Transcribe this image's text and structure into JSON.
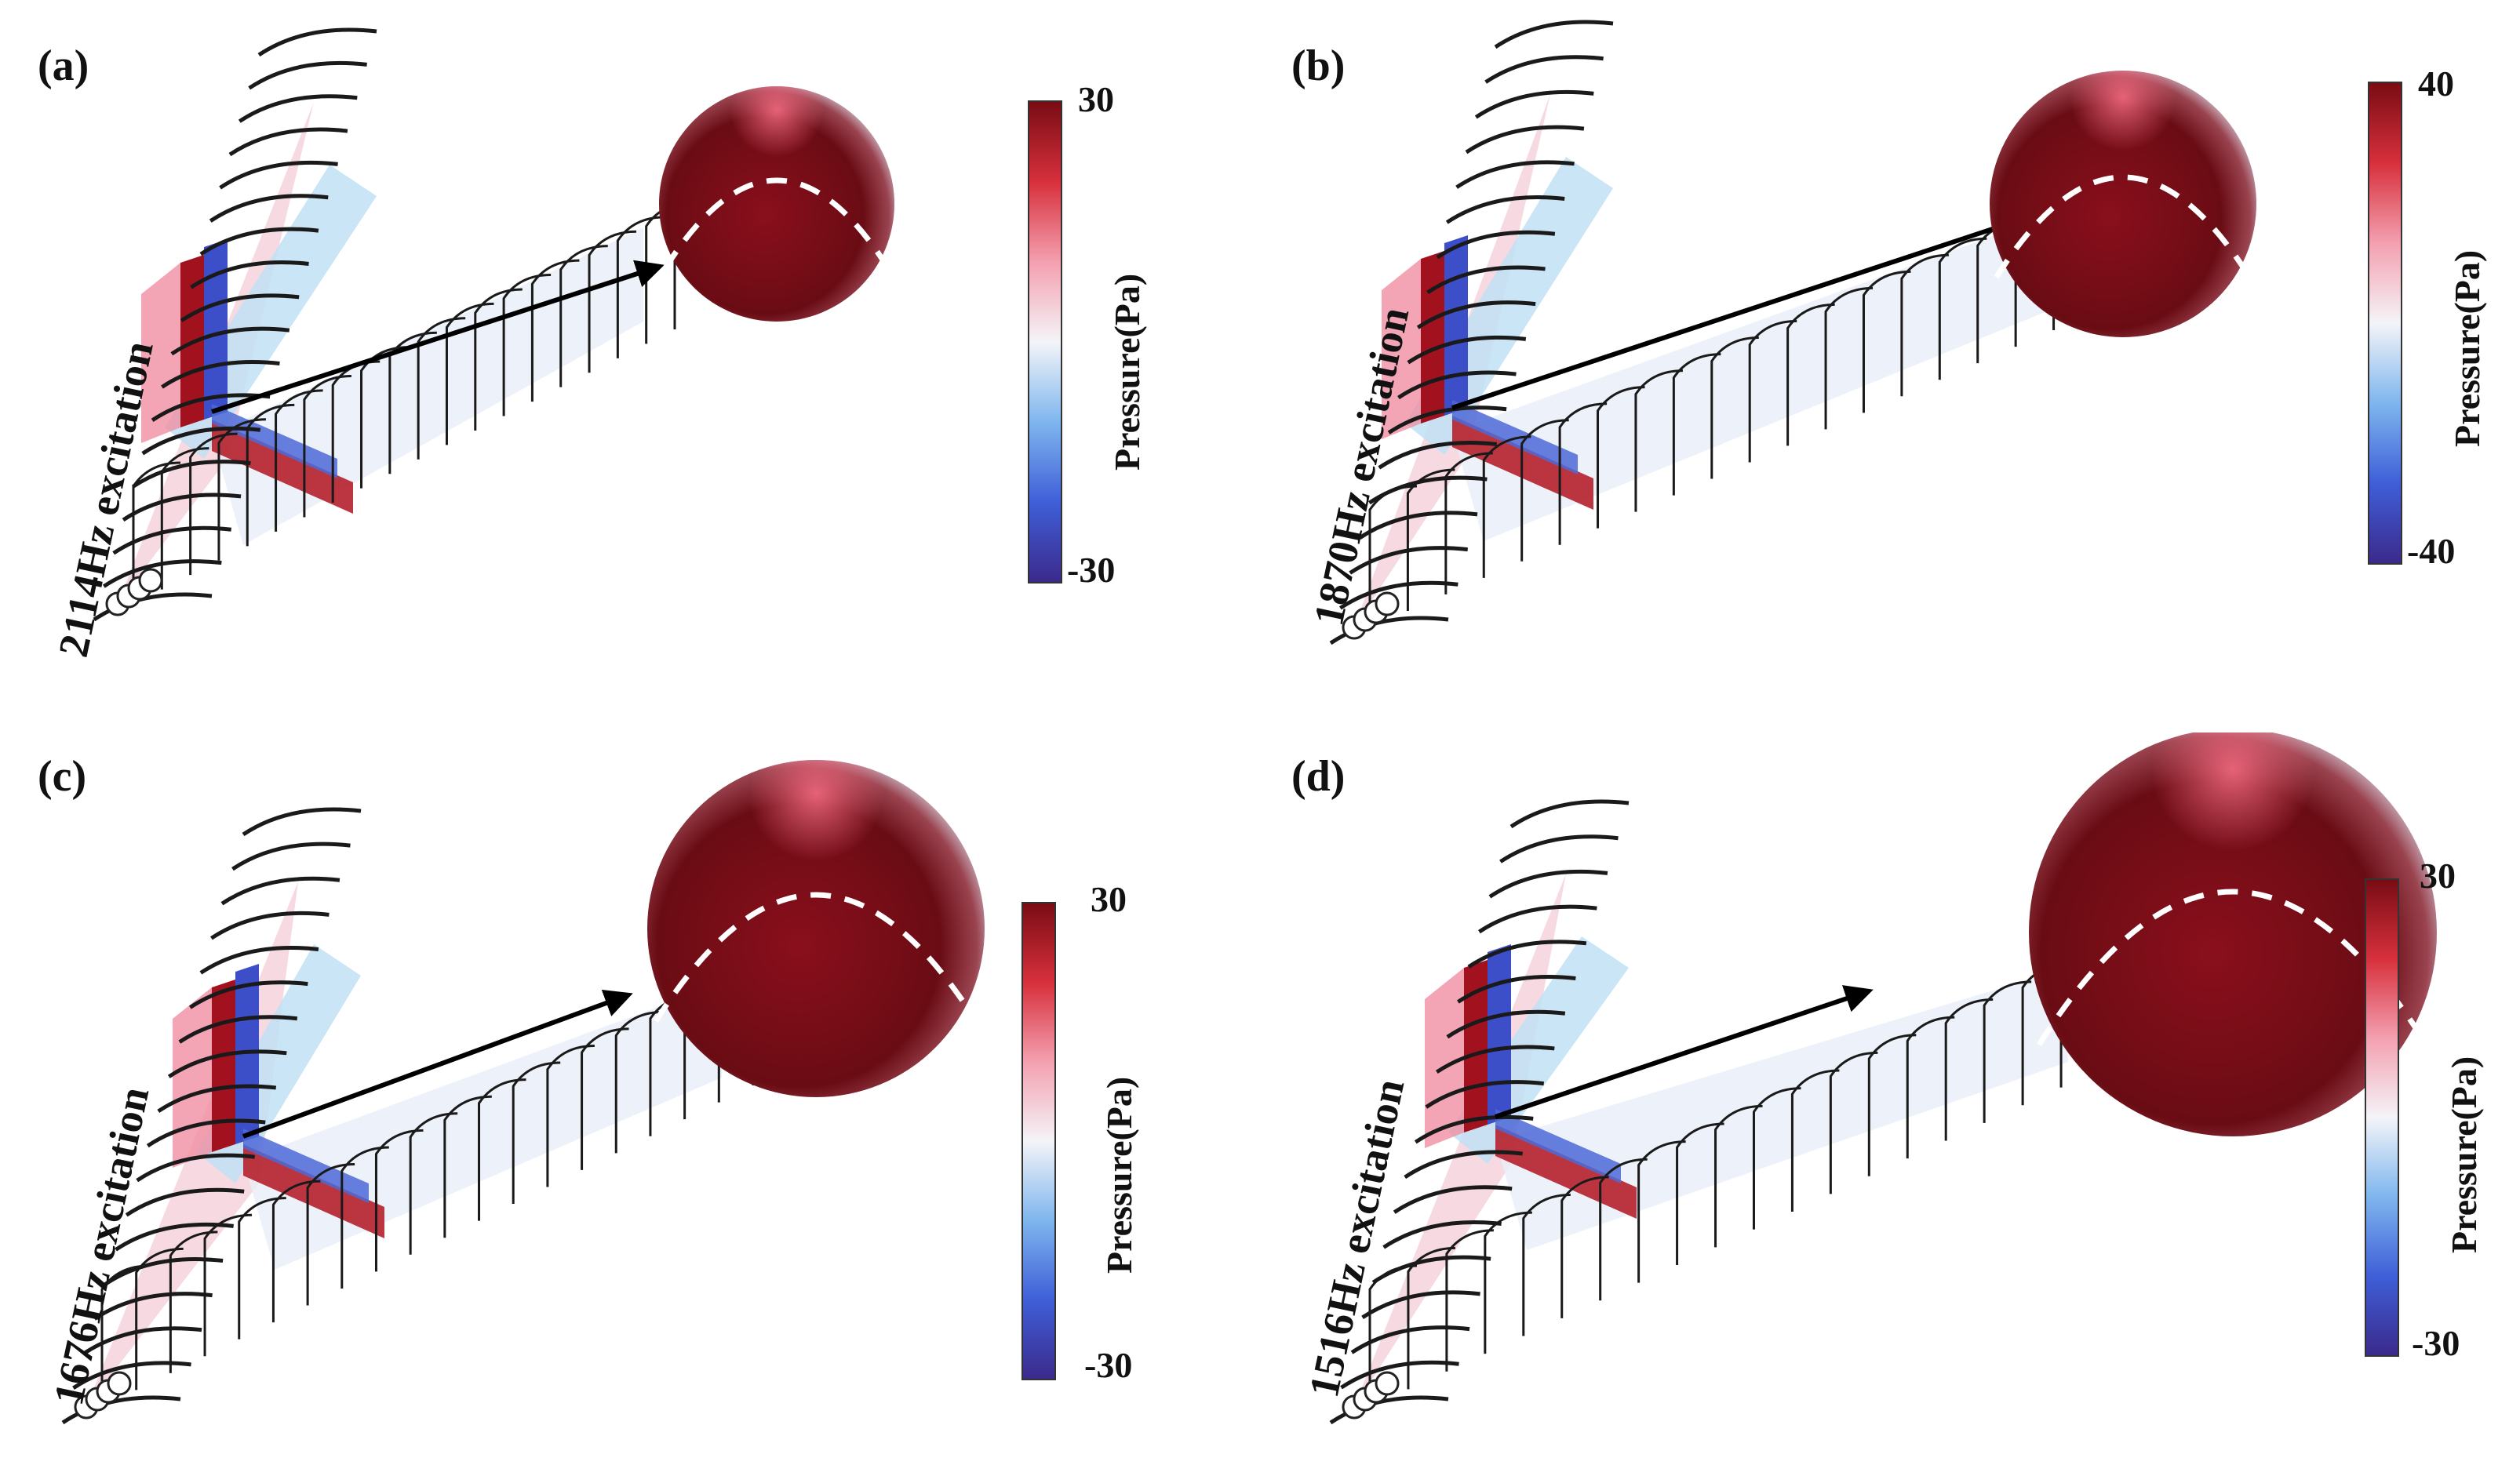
{
  "colorbar_gradient": [
    "#3b2a8c",
    "#3f5fd8",
    "#7fb6ee",
    "#f4f4f8",
    "#f4a0b0",
    "#d7303c",
    "#7a0c14"
  ],
  "colorbar_title": "Pressure(Pa)",
  "panels": [
    {
      "letter": "(a)",
      "excitation": "2114Hz excitation",
      "cb_max": "30",
      "cb_min": "-30"
    },
    {
      "letter": "(b)",
      "excitation": "1870Hz excitation",
      "cb_max": "40",
      "cb_min": "-40"
    },
    {
      "letter": "(c)",
      "excitation": "1676Hz excitation",
      "cb_max": "30",
      "cb_min": "-30"
    },
    {
      "letter": "(d)",
      "excitation": "1516Hz excitation",
      "cb_max": "30",
      "cb_min": "-30"
    }
  ]
}
